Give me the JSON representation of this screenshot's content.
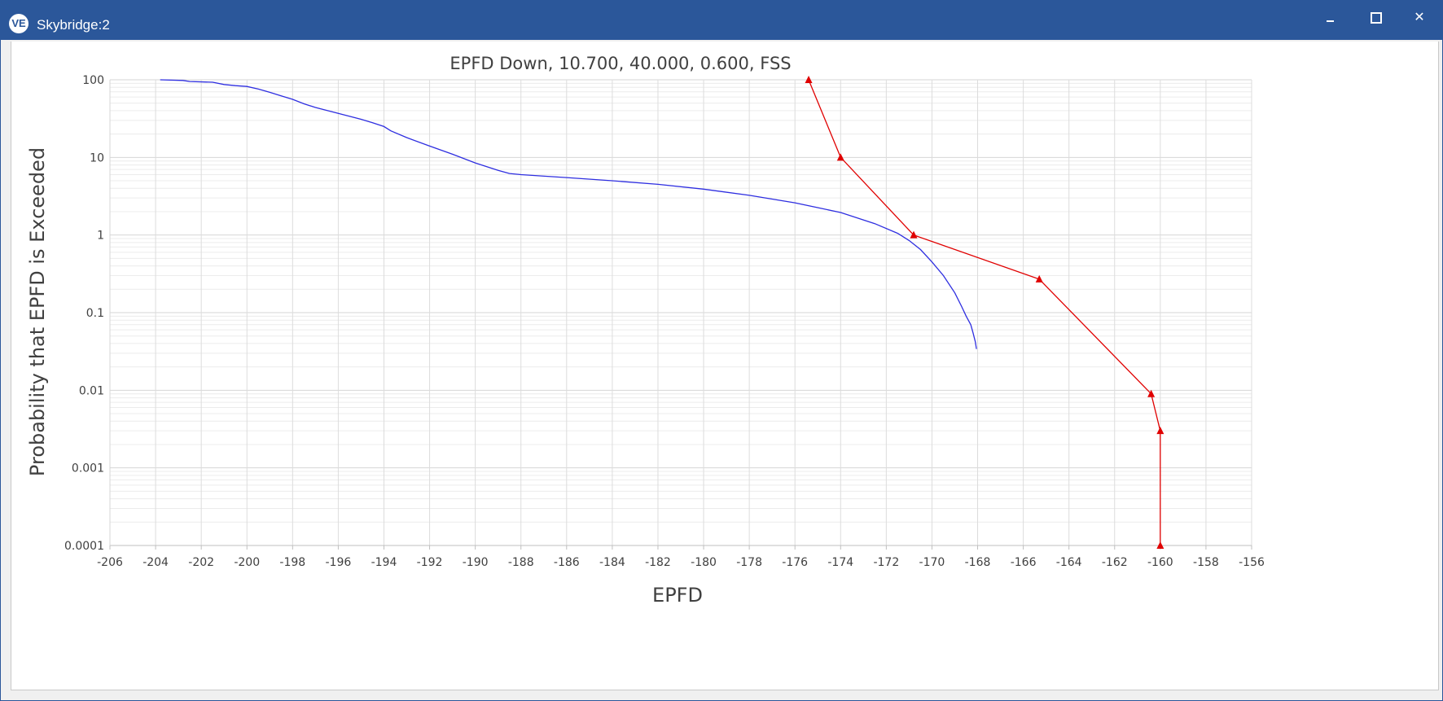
{
  "window": {
    "title": "Skybridge:2",
    "logo_text": "VE",
    "minimize_icon": "minimize-icon",
    "maximize_icon": "maximize-icon",
    "close_label": "✕"
  },
  "chart_data": {
    "type": "line",
    "title": "EPFD Down, 10.700, 40.000, 0.600, FSS",
    "xlabel": "EPFD",
    "ylabel": "Probability that EPFD is Exceeded",
    "xlim": [
      -206,
      -156
    ],
    "ylim": [
      0.0001,
      100
    ],
    "yscale": "log",
    "grid": true,
    "legend": "none",
    "x_ticks": [
      "-206",
      "-204",
      "-202",
      "-200",
      "-198",
      "-196",
      "-194",
      "-192",
      "-190",
      "-188",
      "-186",
      "-184",
      "-182",
      "-180",
      "-178",
      "-176",
      "-174",
      "-172",
      "-170",
      "-168",
      "-166",
      "-164",
      "-162",
      "-160",
      "-158",
      "-156"
    ],
    "y_ticks": [
      "100",
      "10",
      "1",
      "0.1",
      "0.01",
      "0.001",
      "0.0001"
    ],
    "series": [
      {
        "color": "#2e2ee0",
        "marker": "none",
        "x": [
          -203.8,
          -202.8,
          -202.5,
          -201.5,
          -201,
          -200.5,
          -200,
          -199.5,
          -199,
          -198.5,
          -198,
          -197.5,
          -197,
          -196,
          -195,
          -194.5,
          -194,
          -193.7,
          -193,
          -192,
          -191,
          -190,
          -189,
          -188.5,
          -188,
          -186,
          -184,
          -182,
          -180,
          -178,
          -176,
          -174,
          -172.5,
          -171.5,
          -171,
          -170.5,
          -170,
          -169.5,
          -169,
          -168.7,
          -168.5,
          -168.3,
          -168.2,
          -168.1,
          -168.05
        ],
        "y": [
          100,
          98,
          95,
          93,
          87,
          84,
          82,
          76,
          69,
          62,
          56,
          49,
          44,
          37,
          31,
          28,
          25,
          22,
          18,
          14,
          11,
          8.5,
          6.8,
          6.2,
          6.0,
          5.5,
          5.0,
          4.5,
          3.9,
          3.25,
          2.6,
          1.95,
          1.4,
          1.05,
          0.85,
          0.65,
          0.45,
          0.3,
          0.18,
          0.12,
          0.09,
          0.07,
          0.055,
          0.042,
          0.034
        ]
      },
      {
        "color": "#e00000",
        "marker": "triangle",
        "x": [
          -175.4,
          -174,
          -170.8,
          -165.3,
          -160.4,
          -160,
          -160
        ],
        "y": [
          100,
          10,
          1,
          0.27,
          0.009,
          0.003,
          0.0001
        ]
      }
    ]
  }
}
